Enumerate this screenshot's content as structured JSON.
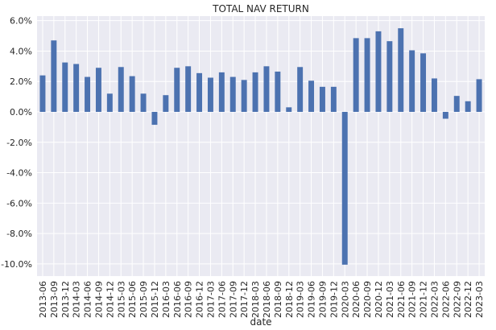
{
  "chart_data": {
    "type": "bar",
    "title": "TOTAL NAV RETURN",
    "xlabel": "date",
    "ylabel": "",
    "ylim": [
      -10.8,
      6.3
    ],
    "yticks": [
      6.0,
      4.0,
      2.0,
      0.0,
      -2.0,
      -4.0,
      -6.0,
      -8.0,
      -10.0
    ],
    "ytick_labels": [
      "6.0%",
      "4.0%",
      "2.0%",
      "0.0%",
      "-2.0%",
      "-4.0%",
      "-6.0%",
      "-8.0%",
      "-10.0%"
    ],
    "grid": true,
    "background_color": "#eaeaf2",
    "bar_color": "#4c72b0",
    "categories": [
      "2013-06",
      "2013-09",
      "2013-12",
      "2014-03",
      "2014-06",
      "2014-09",
      "2014-12",
      "2015-03",
      "2015-06",
      "2015-09",
      "2015-12",
      "2016-03",
      "2016-06",
      "2016-09",
      "2016-12",
      "2017-03",
      "2017-06",
      "2017-09",
      "2017-12",
      "2018-03",
      "2018-06",
      "2018-09",
      "2018-12",
      "2019-03",
      "2019-06",
      "2019-09",
      "2019-12",
      "2020-03",
      "2020-06",
      "2020-09",
      "2020-12",
      "2021-03",
      "2021-06",
      "2021-09",
      "2021-12",
      "2022-03",
      "2022-06",
      "2022-09",
      "2022-12",
      "2023-03"
    ],
    "values": [
      2.4,
      4.7,
      3.25,
      3.15,
      2.3,
      2.9,
      1.2,
      2.95,
      2.35,
      1.2,
      -0.85,
      1.1,
      2.9,
      3.0,
      2.55,
      2.25,
      2.6,
      2.3,
      2.1,
      2.6,
      3.0,
      2.65,
      0.3,
      2.95,
      2.05,
      1.65,
      1.65,
      -10.05,
      4.85,
      4.85,
      5.3,
      4.65,
      5.5,
      4.05,
      3.85,
      2.2,
      -0.45,
      1.05,
      0.7,
      2.15
    ]
  }
}
